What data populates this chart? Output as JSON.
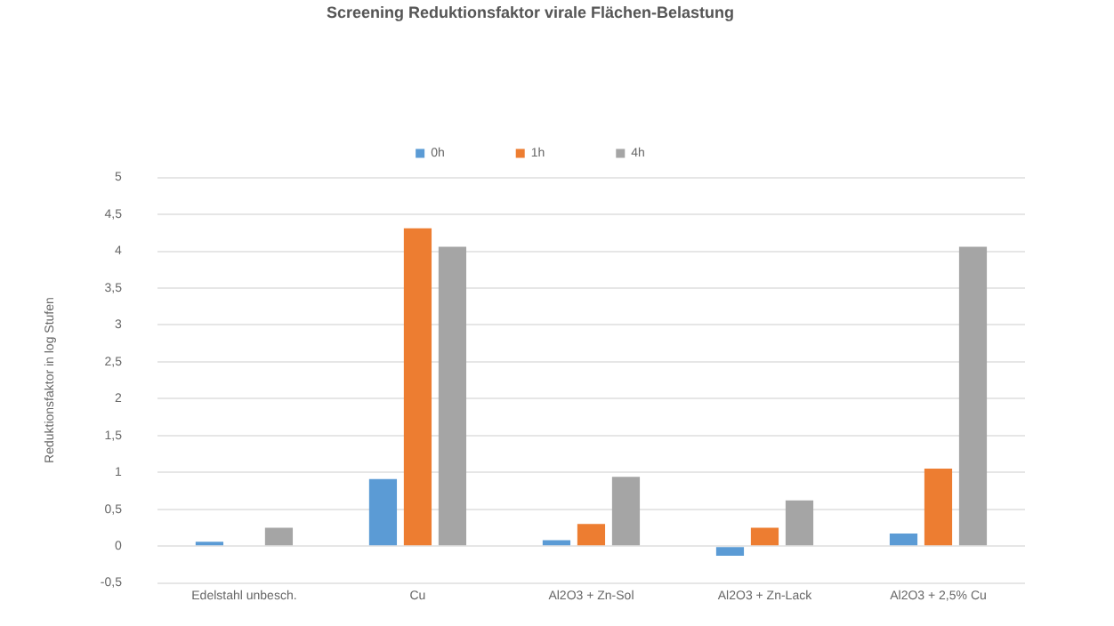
{
  "chart_data": {
    "type": "bar",
    "title": "Screening Reduktionsfaktor virale Flächen-Belastung",
    "ylabel": "Reduktionsfaktor in log Stufen",
    "categories": [
      "Edelstahl unbesch.",
      "Cu",
      "Al2O3 + Zn-Sol",
      "Al2O3 + Zn-Lack",
      "Al2O3 + 2,5% Cu"
    ],
    "series": [
      {
        "name": "0h",
        "color": "#5b9bd5",
        "values": [
          0.06,
          0.91,
          0.08,
          -0.13,
          0.17
        ]
      },
      {
        "name": "1h",
        "color": "#ed7d31",
        "values": [
          0,
          4.31,
          0.3,
          0.25,
          1.05
        ]
      },
      {
        "name": "4h",
        "color": "#a5a5a5",
        "values": [
          0.25,
          4.06,
          0.94,
          0.62,
          4.06
        ]
      }
    ],
    "ylim": [
      -0.5,
      5
    ],
    "yticks": [
      {
        "value": -0.5,
        "label": "-0,5"
      },
      0,
      {
        "value": 0.5,
        "label": "0,5"
      },
      1,
      {
        "value": 1.5,
        "label": "1,5"
      },
      2,
      {
        "value": 2.5,
        "label": "2,5"
      },
      3,
      {
        "value": 3.5,
        "label": "3,5"
      },
      4,
      {
        "value": 4.5,
        "label": "4,5"
      },
      5
    ],
    "grid": "y",
    "legend": "top"
  }
}
